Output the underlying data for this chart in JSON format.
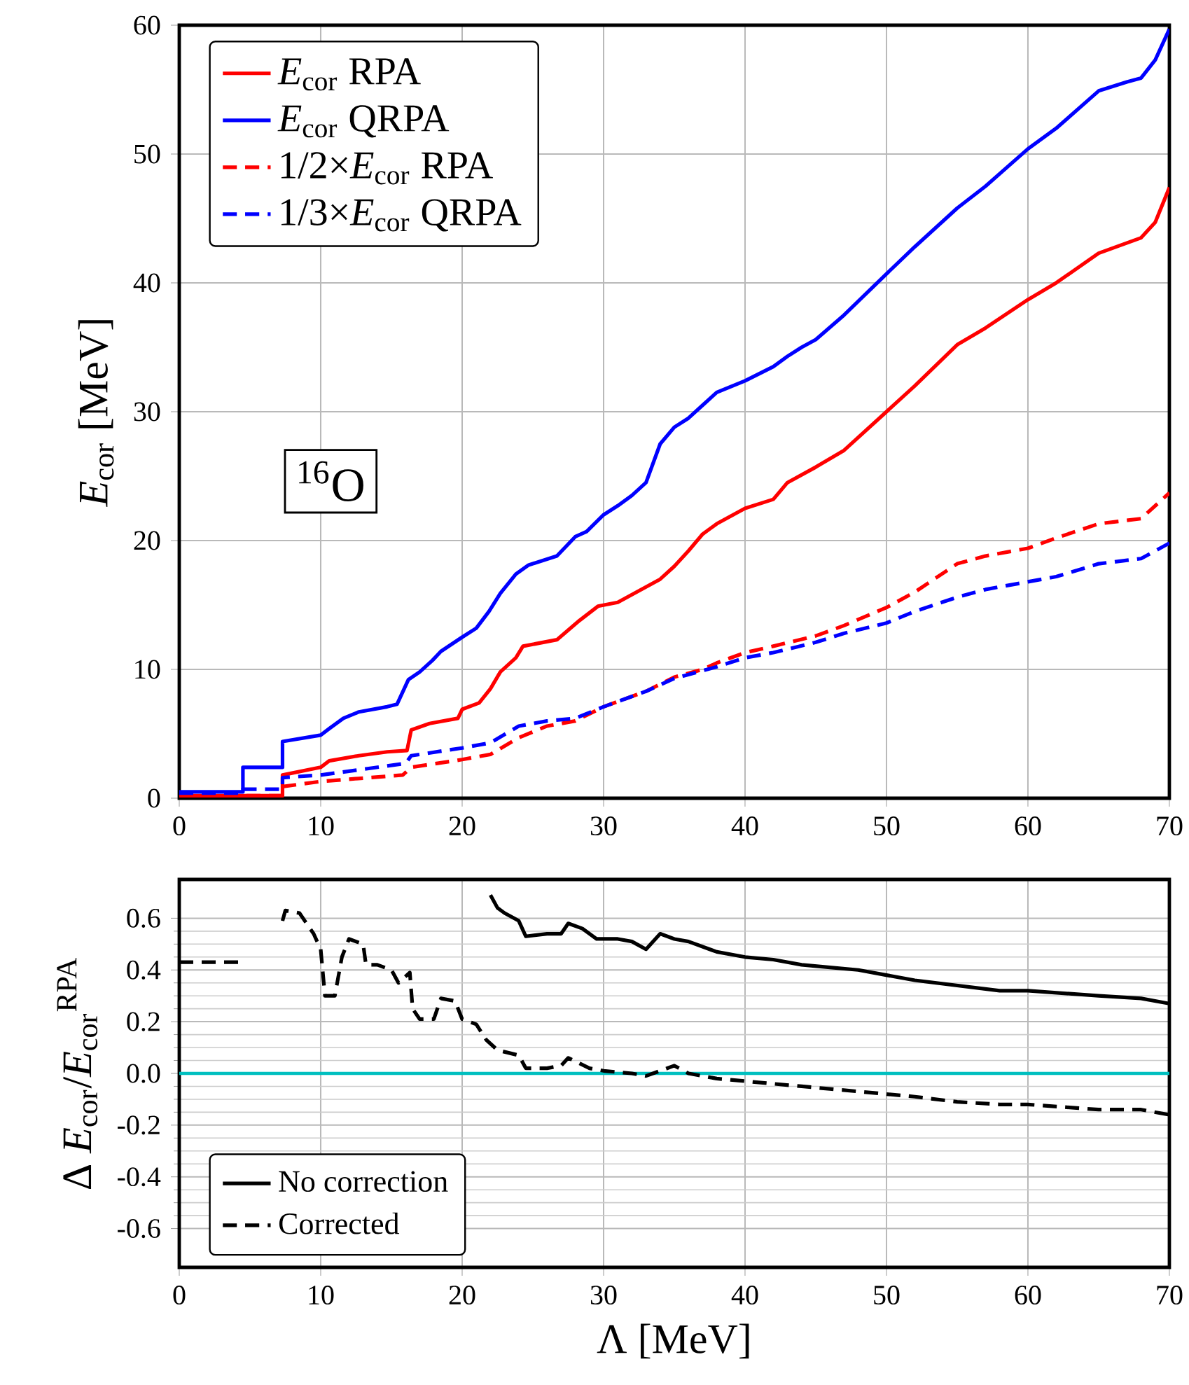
{
  "chart_data": [
    {
      "type": "line",
      "ylabel": "*E*$_{cor}$ [MeV]",
      "xlim": [
        0,
        70
      ],
      "ylim": [
        0,
        60
      ],
      "xticks": [
        0,
        10,
        20,
        30,
        40,
        50,
        60,
        70
      ],
      "yticks": [
        0,
        10,
        20,
        30,
        40,
        50,
        60
      ],
      "grid": true,
      "legend": "top left",
      "annotations": [
        "$^{16}$O"
      ],
      "series": [
        {
          "name": "*E*$_{cor}$ RPA",
          "color": "#ff0000",
          "line_style": "solid",
          "x": [
            0,
            7.3,
            7.3,
            10,
            10.6,
            12.7,
            14.7,
            16.1,
            16.4,
            17.7,
            19.7,
            20,
            21.2,
            22,
            22.7,
            23.8,
            24.3,
            26.7,
            28.3,
            29.6,
            31,
            32,
            34,
            35,
            36,
            37,
            38,
            40,
            42,
            43,
            45,
            47,
            50,
            52,
            55,
            57,
            60,
            62,
            65,
            68,
            69,
            70
          ],
          "values": [
            0.2,
            0.2,
            1.8,
            2.4,
            2.9,
            3.3,
            3.6,
            3.7,
            5.3,
            5.8,
            6.2,
            6.9,
            7.4,
            8.5,
            9.8,
            10.9,
            11.8,
            12.3,
            13.8,
            14.9,
            15.2,
            15.8,
            17.0,
            18.0,
            19.2,
            20.5,
            21.3,
            22.5,
            23.2,
            24.5,
            25.7,
            27.0,
            30.0,
            32.0,
            35.2,
            36.5,
            38.7,
            40.0,
            42.3,
            43.5,
            44.7,
            47.4
          ]
        },
        {
          "name": "*E*$_{cor}$ QRPA",
          "color": "#0000ff",
          "line_style": "solid",
          "x": [
            0,
            4.5,
            4.5,
            7.3,
            7.3,
            10,
            10.6,
            11.6,
            12.7,
            14.7,
            15.4,
            16.2,
            17,
            17.9,
            18.5,
            20,
            21,
            21.9,
            22.7,
            23.8,
            24.7,
            26.7,
            28,
            28.8,
            30,
            31,
            32,
            33,
            34,
            35,
            36,
            37,
            38,
            40,
            42,
            43,
            44,
            45,
            47,
            50,
            52,
            55,
            57,
            60,
            62,
            65,
            67,
            68,
            69,
            70
          ],
          "values": [
            0.5,
            0.5,
            2.4,
            2.4,
            4.4,
            4.9,
            5.4,
            6.2,
            6.7,
            7.1,
            7.3,
            9.2,
            9.8,
            10.7,
            11.4,
            12.5,
            13.2,
            14.5,
            15.9,
            17.4,
            18.1,
            18.8,
            20.3,
            20.7,
            22.0,
            22.7,
            23.5,
            24.5,
            27.5,
            28.8,
            29.5,
            30.5,
            31.5,
            32.4,
            33.5,
            34.3,
            35.0,
            35.6,
            37.5,
            40.7,
            42.8,
            45.8,
            47.5,
            50.4,
            52.0,
            54.9,
            55.6,
            55.9,
            57.3,
            59.7
          ]
        },
        {
          "name": "1/2×*E*$_{cor}$ RPA",
          "color": "#ff0000",
          "line_style": "dashed",
          "x": [
            0,
            7.3,
            7.3,
            10,
            15.8,
            16.4,
            20,
            22,
            24,
            26,
            28,
            30,
            31,
            33,
            35,
            37,
            38,
            40,
            42,
            45,
            47,
            50,
            52,
            55,
            57,
            60,
            62,
            65,
            68,
            70
          ],
          "values": [
            0.2,
            0.2,
            0.9,
            1.3,
            1.8,
            2.4,
            3.0,
            3.4,
            4.7,
            5.6,
            6.0,
            7.1,
            7.5,
            8.3,
            9.4,
            10.0,
            10.5,
            11.3,
            11.8,
            12.6,
            13.4,
            14.8,
            16.0,
            18.2,
            18.8,
            19.4,
            20.2,
            21.3,
            21.7,
            23.7
          ]
        },
        {
          "name": "1/3×*E*$_{cor}$ QRPA",
          "color": "#0000ff",
          "line_style": "dashed",
          "x": [
            0,
            4.5,
            4.5,
            7.3,
            7.3,
            10,
            16,
            16.4,
            20,
            22,
            24,
            26,
            28,
            30,
            31,
            33,
            35,
            37,
            38,
            40,
            42,
            45,
            47,
            50,
            52,
            55,
            57,
            60,
            62,
            65,
            68,
            70
          ],
          "values": [
            0.4,
            0.4,
            0.7,
            0.7,
            1.6,
            1.8,
            2.7,
            3.3,
            3.9,
            4.3,
            5.6,
            6.0,
            6.2,
            7.1,
            7.5,
            8.3,
            9.3,
            9.9,
            10.2,
            10.9,
            11.3,
            12.1,
            12.8,
            13.6,
            14.5,
            15.6,
            16.2,
            16.8,
            17.2,
            18.2,
            18.6,
            19.8
          ]
        }
      ]
    },
    {
      "type": "line",
      "xlabel": "Λ [MeV]",
      "ylabel": "Δ *E*$_{cor}$/*E*$_{cor}$$^{RPA}$",
      "xlim": [
        0,
        70
      ],
      "ylim": [
        -0.75,
        0.75
      ],
      "xticks": [
        0,
        10,
        20,
        30,
        40,
        50,
        60,
        70
      ],
      "yticks": [
        -0.6,
        -0.4,
        -0.2,
        {
          "value": 0,
          "label": "0.0"
        },
        0.2,
        0.4,
        0.6
      ],
      "grid": true,
      "legend": "bottom left",
      "ref_lines": [
        {
          "axis": "y",
          "value": 0,
          "color": "#00bfbf"
        }
      ],
      "series": [
        {
          "name": "No correction",
          "color": "#000000",
          "line_style": "solid",
          "x": [
            22,
            22.5,
            23,
            24,
            24.5,
            26,
            27,
            27.5,
            28.5,
            29.5,
            31,
            32,
            33,
            34,
            35,
            36,
            38,
            40,
            42,
            44,
            46,
            48,
            50,
            52,
            55,
            58,
            60,
            65,
            68,
            70
          ],
          "values": [
            0.69,
            0.64,
            0.62,
            0.59,
            0.53,
            0.54,
            0.54,
            0.58,
            0.56,
            0.52,
            0.52,
            0.51,
            0.48,
            0.54,
            0.52,
            0.51,
            0.47,
            0.45,
            0.44,
            0.42,
            0.41,
            0.4,
            0.38,
            0.36,
            0.34,
            0.32,
            0.32,
            0.3,
            0.29,
            0.27
          ]
        },
        {
          "name": "Corrected",
          "color": "#000000",
          "line_style": "dashed",
          "x": [
            0,
            4.3,
            5,
            7.3,
            7.5,
            8.5,
            9.5,
            10,
            10.3,
            11,
            11.5,
            12,
            13,
            13.2,
            14,
            15,
            15.5,
            16.3,
            16.5,
            17,
            18,
            18.5,
            19.5,
            20,
            21,
            21.7,
            22.5,
            24,
            24.5,
            26,
            27,
            27.5,
            29,
            30,
            32,
            33,
            34,
            35,
            36,
            38,
            40,
            42,
            44,
            46,
            48,
            50,
            52,
            55,
            58,
            60,
            65,
            68,
            70
          ],
          "values": [
            0.43,
            0.43,
            null,
            0.59,
            0.63,
            0.62,
            0.54,
            0.48,
            0.3,
            0.3,
            0.45,
            0.52,
            0.5,
            0.42,
            0.42,
            0.4,
            0.35,
            0.39,
            0.25,
            0.21,
            0.21,
            0.29,
            0.28,
            0.21,
            0.19,
            0.13,
            0.09,
            0.07,
            0.02,
            0.02,
            0.03,
            0.06,
            0.02,
            0.01,
            0.0,
            -0.01,
            0.01,
            0.03,
            0.0,
            -0.02,
            -0.03,
            -0.04,
            -0.05,
            -0.06,
            -0.07,
            -0.08,
            -0.09,
            -0.11,
            -0.12,
            -0.12,
            -0.14,
            -0.14,
            -0.16
          ]
        }
      ]
    }
  ]
}
